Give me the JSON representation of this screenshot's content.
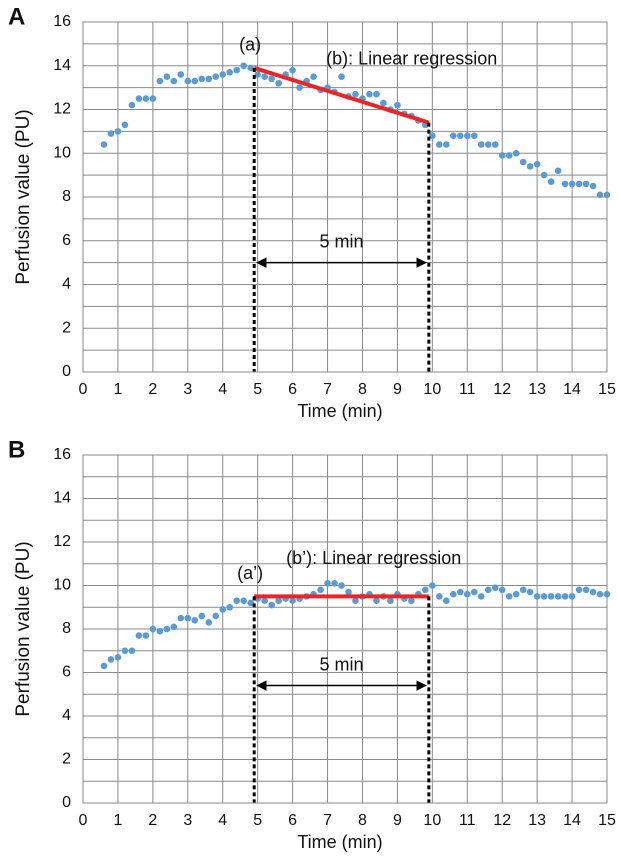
{
  "chart_data": [
    {
      "type": "scatter",
      "panel_label": "A",
      "x_label": "Time (min)",
      "y_label": "Perfusion value (PU)",
      "xlim": [
        0,
        15
      ],
      "ylim": [
        0,
        16
      ],
      "xticks": [
        0,
        1,
        2,
        3,
        4,
        5,
        6,
        7,
        8,
        9,
        10,
        11,
        12,
        13,
        14,
        15
      ],
      "yticks": [
        0,
        2,
        4,
        6,
        8,
        10,
        12,
        14,
        16
      ],
      "minor_yticks": [
        1,
        3,
        5,
        7,
        9,
        11,
        13,
        15
      ],
      "grid": true,
      "series": [
        {
          "color": "#5b9bd5",
          "x": [
            0.6,
            0.8,
            1.0,
            1.2,
            1.4,
            1.6,
            1.8,
            2.0,
            2.2,
            2.4,
            2.6,
            2.8,
            3.0,
            3.2,
            3.4,
            3.6,
            3.8,
            4.0,
            4.2,
            4.4,
            4.6,
            4.8,
            5.0,
            5.2,
            5.4,
            5.6,
            5.8,
            6.0,
            6.2,
            6.4,
            6.6,
            6.8,
            7.0,
            7.2,
            7.4,
            7.6,
            7.8,
            8.0,
            8.2,
            8.4,
            8.6,
            8.8,
            9.0,
            9.2,
            9.4,
            9.6,
            9.8,
            10.0,
            10.2,
            10.4,
            10.6,
            10.8,
            11.0,
            11.2,
            11.4,
            11.6,
            11.8,
            12.0,
            12.2,
            12.4,
            12.6,
            12.8,
            13.0,
            13.2,
            13.4,
            13.6,
            13.8,
            14.0,
            14.2,
            14.4,
            14.6,
            14.8,
            15.0
          ],
          "values": [
            10.4,
            10.9,
            11.0,
            11.3,
            12.2,
            12.5,
            12.5,
            12.5,
            13.3,
            13.5,
            13.3,
            13.6,
            13.3,
            13.3,
            13.4,
            13.4,
            13.5,
            13.6,
            13.7,
            13.8,
            14.0,
            13.9,
            13.6,
            13.5,
            13.4,
            13.2,
            13.6,
            13.8,
            13.0,
            13.3,
            13.5,
            12.9,
            13.0,
            12.8,
            13.5,
            12.6,
            12.7,
            12.5,
            12.7,
            12.7,
            12.3,
            12.0,
            12.2,
            11.8,
            11.7,
            11.5,
            11.3,
            10.8,
            10.4,
            10.4,
            10.8,
            10.8,
            10.8,
            10.8,
            10.4,
            10.4,
            10.4,
            9.9,
            9.9,
            10.0,
            9.6,
            9.4,
            9.5,
            9.0,
            8.7,
            9.2,
            8.6,
            8.6,
            8.6,
            8.6,
            8.5,
            8.1,
            8.1
          ]
        }
      ],
      "regression": {
        "label": "(b): Linear regression",
        "color": "#e8262a",
        "x": [
          4.9,
          9.9
        ],
        "y": [
          13.9,
          11.4
        ]
      },
      "start_label": "(a)",
      "interval": {
        "label": "5 min",
        "x": [
          4.9,
          9.9
        ],
        "arrow_y": 5
      }
    },
    {
      "type": "scatter",
      "panel_label": "B",
      "x_label": "Time (min)",
      "y_label": "Perfusion value (PU)",
      "xlim": [
        0,
        15
      ],
      "ylim": [
        0,
        16
      ],
      "xticks": [
        0,
        1,
        2,
        3,
        4,
        5,
        6,
        7,
        8,
        9,
        10,
        11,
        12,
        13,
        14,
        15
      ],
      "yticks": [
        0,
        2,
        4,
        6,
        8,
        10,
        12,
        14,
        16
      ],
      "minor_yticks": [
        1,
        3,
        5,
        7,
        9,
        11,
        13,
        15
      ],
      "grid": true,
      "series": [
        {
          "color": "#5b9bd5",
          "x": [
            0.6,
            0.8,
            1.0,
            1.2,
            1.4,
            1.6,
            1.8,
            2.0,
            2.2,
            2.4,
            2.6,
            2.8,
            3.0,
            3.2,
            3.4,
            3.6,
            3.8,
            4.0,
            4.2,
            4.4,
            4.6,
            4.8,
            5.0,
            5.2,
            5.4,
            5.6,
            5.8,
            6.0,
            6.2,
            6.4,
            6.6,
            6.8,
            7.0,
            7.2,
            7.4,
            7.6,
            7.8,
            8.0,
            8.2,
            8.4,
            8.6,
            8.8,
            9.0,
            9.2,
            9.4,
            9.6,
            9.8,
            10.0,
            10.2,
            10.4,
            10.6,
            10.8,
            11.0,
            11.2,
            11.4,
            11.6,
            11.8,
            12.0,
            12.2,
            12.4,
            12.6,
            12.8,
            13.0,
            13.2,
            13.4,
            13.6,
            13.8,
            14.0,
            14.2,
            14.4,
            14.6,
            14.8,
            15.0
          ],
          "values": [
            6.3,
            6.6,
            6.7,
            7.0,
            7.0,
            7.7,
            7.7,
            8.0,
            7.9,
            8.0,
            8.1,
            8.5,
            8.5,
            8.4,
            8.6,
            8.3,
            8.6,
            8.9,
            9.0,
            9.3,
            9.3,
            9.2,
            9.4,
            9.3,
            9.1,
            9.3,
            9.4,
            9.3,
            9.4,
            9.5,
            9.6,
            9.8,
            10.1,
            10.1,
            10.0,
            9.7,
            9.3,
            9.5,
            9.6,
            9.3,
            9.5,
            9.3,
            9.6,
            9.4,
            9.3,
            9.6,
            9.8,
            10.0,
            9.5,
            9.3,
            9.6,
            9.7,
            9.6,
            9.7,
            9.5,
            9.8,
            9.9,
            9.8,
            9.5,
            9.6,
            9.8,
            9.7,
            9.5,
            9.5,
            9.5,
            9.5,
            9.5,
            9.5,
            9.8,
            9.8,
            9.7,
            9.6,
            9.6
          ]
        }
      ],
      "regression": {
        "label": "(b’): Linear regression",
        "color": "#e8262a",
        "x": [
          4.9,
          9.9
        ],
        "y": [
          9.5,
          9.5
        ]
      },
      "start_label": "(a’)",
      "interval": {
        "label": "5 min",
        "x": [
          4.9,
          9.9
        ],
        "arrow_y": 5.4
      }
    }
  ]
}
